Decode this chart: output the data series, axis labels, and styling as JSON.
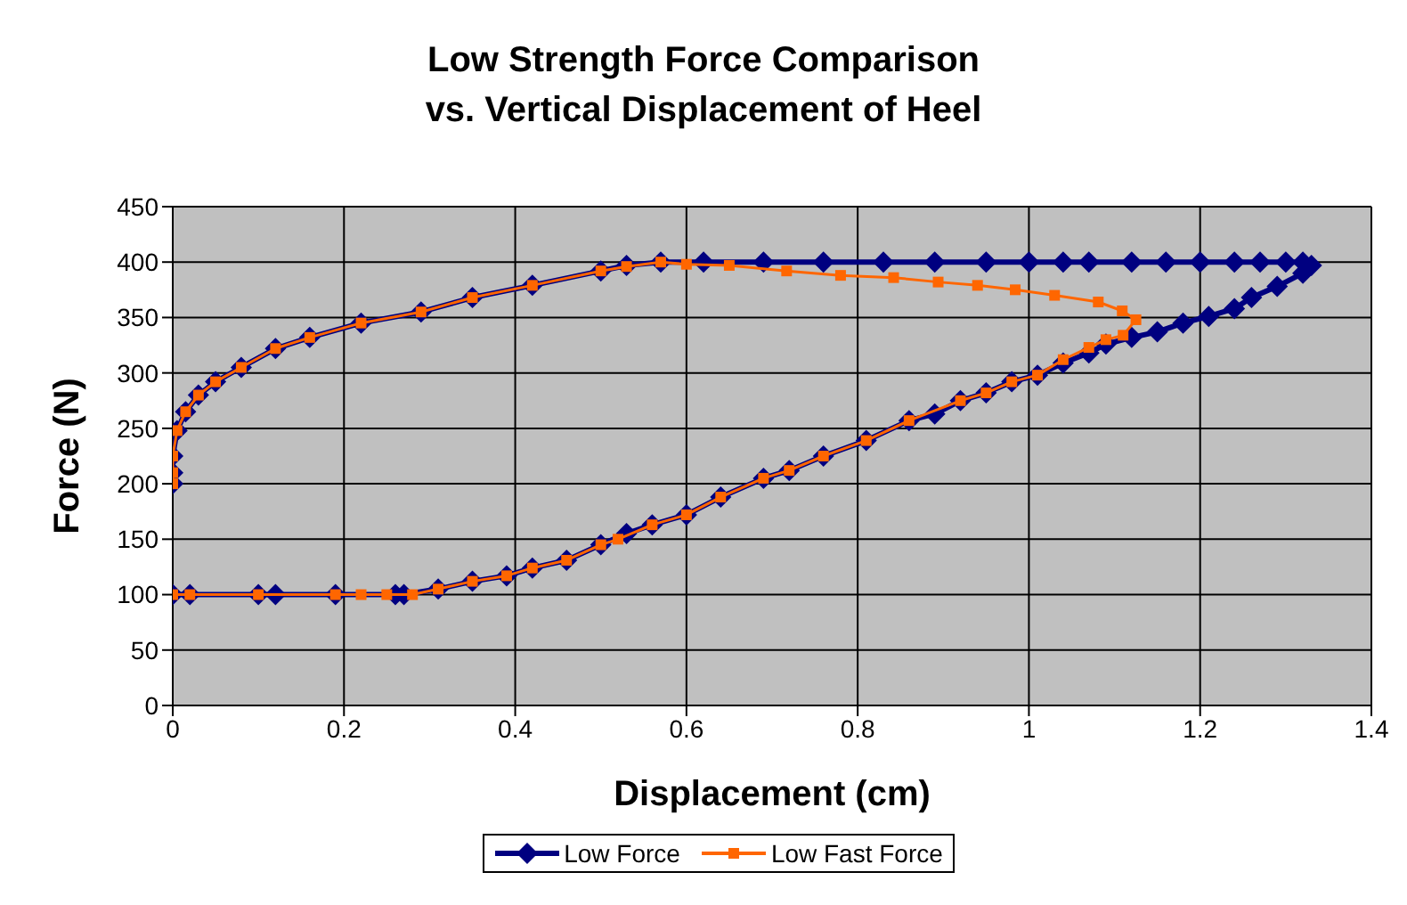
{
  "chart_data": {
    "type": "line",
    "title": "Low Strength Force Comparison\nvs. Vertical Displacement of Heel",
    "xlabel": "Displacement (cm)",
    "ylabel": "Force (N)",
    "xlim": [
      0,
      1.4
    ],
    "xticks": [
      0,
      0.2,
      0.4,
      0.6,
      0.8,
      1,
      1.2,
      1.4
    ],
    "ylim": [
      0,
      450
    ],
    "yticks": [
      0,
      50,
      100,
      150,
      200,
      250,
      300,
      350,
      400,
      450
    ],
    "grid": true,
    "legend": "bottom",
    "line_style": "solid",
    "series": [
      {
        "name": "Low Force",
        "color": "#000080",
        "marker": "diamond",
        "x": [
          0,
          0.02,
          0.1,
          0.12,
          0.19,
          0.26,
          0.27,
          0.31,
          0.35,
          0.39,
          0.42,
          0.46,
          0.5,
          0.53,
          0.56,
          0.6,
          0.64,
          0.69,
          0.72,
          0.76,
          0.81,
          0.86,
          0.89,
          0.92,
          0.95,
          0.98,
          1.01,
          1.04,
          1.07,
          1.09,
          1.12,
          1.15,
          1.18,
          1.21,
          1.24,
          1.26,
          1.29,
          1.32,
          1.33,
          1.32,
          1.3,
          1.27,
          1.24,
          1.2,
          1.16,
          1.12,
          1.07,
          1.04,
          1.0,
          0.95,
          0.89,
          0.83,
          0.76,
          0.69,
          0.62,
          0.57,
          0.53,
          0.5,
          0.42,
          0.35,
          0.29,
          0.22,
          0.16,
          0.12,
          0.08,
          0.05,
          0.03,
          0.015,
          0.005,
          0,
          0,
          0
        ],
        "values": [
          100,
          100,
          100,
          100,
          100,
          100,
          100,
          105,
          112,
          117,
          124,
          131,
          145,
          155,
          163,
          172,
          188,
          205,
          212,
          225,
          239,
          257,
          263,
          275,
          282,
          292,
          298,
          309,
          318,
          326,
          332,
          337,
          345,
          351,
          358,
          368,
          378,
          390,
          397,
          400,
          400,
          400,
          400,
          400,
          400,
          400,
          400,
          400,
          400,
          400,
          400,
          400,
          400,
          400,
          400,
          400,
          397,
          392,
          379,
          368,
          355,
          345,
          332,
          322,
          305,
          292,
          280,
          265,
          248,
          225,
          210,
          200
        ]
      },
      {
        "name": "Low Fast Force",
        "color": "#ff6600",
        "marker": "square",
        "x": [
          0,
          0.02,
          0.1,
          0.19,
          0.22,
          0.25,
          0.28,
          0.31,
          0.35,
          0.39,
          0.42,
          0.46,
          0.5,
          0.52,
          0.56,
          0.6,
          0.64,
          0.69,
          0.72,
          0.76,
          0.81,
          0.86,
          0.92,
          0.95,
          0.98,
          1.01,
          1.04,
          1.07,
          1.09,
          1.11,
          1.125,
          1.109,
          1.081,
          1.03,
          0.984,
          0.94,
          0.894,
          0.842,
          0.78,
          0.717,
          0.65,
          0.6,
          0.57,
          0.53,
          0.5,
          0.42,
          0.35,
          0.29,
          0.22,
          0.16,
          0.12,
          0.08,
          0.05,
          0.03,
          0.015,
          0.005,
          0,
          0,
          0
        ],
        "values": [
          100,
          100,
          100,
          100,
          100,
          100,
          100,
          105,
          112,
          117,
          124,
          131,
          145,
          150,
          163,
          172,
          188,
          205,
          212,
          225,
          239,
          257,
          275,
          282,
          292,
          298,
          312,
          323,
          330,
          334,
          348,
          356,
          364,
          370,
          375,
          379,
          382,
          386,
          388,
          392,
          397,
          398,
          400,
          396,
          392,
          379,
          368,
          355,
          345,
          332,
          322,
          305,
          292,
          280,
          265,
          248,
          225,
          210,
          200
        ]
      }
    ]
  }
}
